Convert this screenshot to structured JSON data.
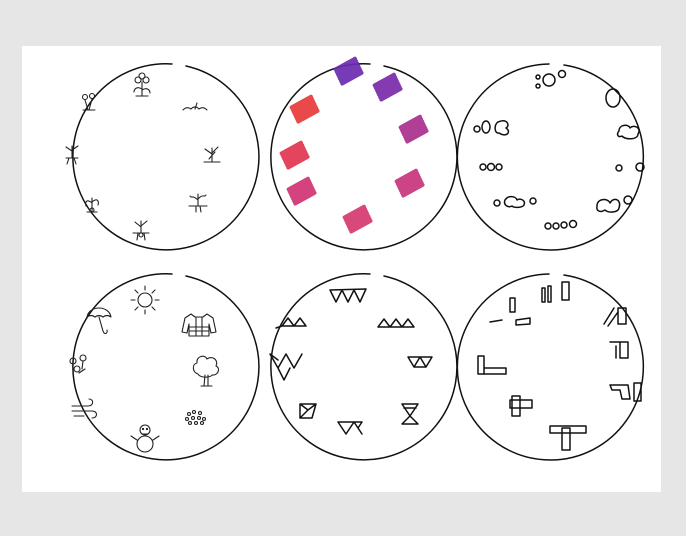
{
  "page": {
    "background": "#e6e6e6",
    "sheet_background": "#ffffff",
    "ink_color": "#111111"
  },
  "circles": [
    {
      "id": "seedlings",
      "motif": "sprouting-plant-icon",
      "count": 8
    },
    {
      "id": "color-swatches",
      "motif": "crayon-scribble",
      "count": 8,
      "colors": [
        "#6a2bb0",
        "#7a2aa8",
        "#a8308c",
        "#c9347c",
        "#d03373",
        "#d6386f",
        "#e0354f",
        "#e83a3a"
      ]
    },
    {
      "id": "bubbles",
      "motif": "circle-cluster-icon",
      "count": 9
    },
    {
      "id": "weather-seasons",
      "motif": "season-weather-icon",
      "count": 8,
      "icons": [
        "sun-icon",
        "sweater-icon",
        "tree-icon",
        "snowflakes-icon",
        "snowman-icon",
        "wind-icon",
        "flowers-icon",
        "umbrella-icon"
      ]
    },
    {
      "id": "triangles",
      "motif": "triangle-pattern-icon",
      "count": 8
    },
    {
      "id": "blocks",
      "motif": "rectangle-block-icon",
      "count": 9
    }
  ]
}
